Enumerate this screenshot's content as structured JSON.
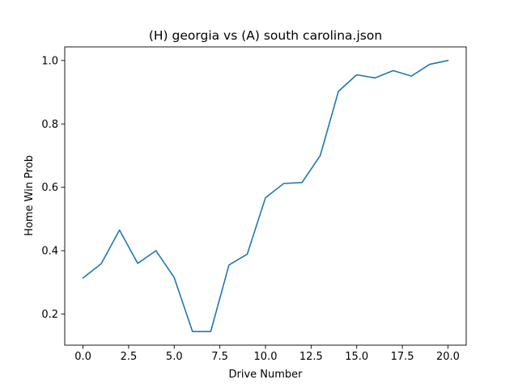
{
  "chart_data": {
    "type": "line",
    "title": "(H) georgia vs (A) south carolina.json",
    "xlabel": "Drive Number",
    "ylabel": "Home Win Prob",
    "xlim": [
      -1.0,
      21.0
    ],
    "ylim": [
      0.102,
      1.043
    ],
    "xticks": [
      0,
      2.5,
      5,
      7.5,
      10,
      12.5,
      15,
      17.5,
      20
    ],
    "xtick_labels": [
      "0.0",
      "2.5",
      "5.0",
      "7.5",
      "10.0",
      "12.5",
      "15.0",
      "17.5",
      "20.0"
    ],
    "yticks": [
      0.2,
      0.4,
      0.6,
      0.8,
      1.0
    ],
    "ytick_labels": [
      "0.2",
      "0.4",
      "0.6",
      "0.8",
      "1.0"
    ],
    "grid": false,
    "series": [
      {
        "color": "#1f77b4",
        "x": [
          0,
          1,
          2,
          3,
          4,
          5,
          6,
          7,
          8,
          9,
          10,
          11,
          12,
          13,
          14,
          15,
          16,
          17,
          18,
          19,
          20
        ],
        "y": [
          0.314,
          0.359,
          0.465,
          0.36,
          0.4,
          0.315,
          0.145,
          0.145,
          0.355,
          0.389,
          0.567,
          0.612,
          0.615,
          0.7,
          0.903,
          0.955,
          0.945,
          0.968,
          0.951,
          0.988,
          1.0
        ]
      }
    ]
  }
}
